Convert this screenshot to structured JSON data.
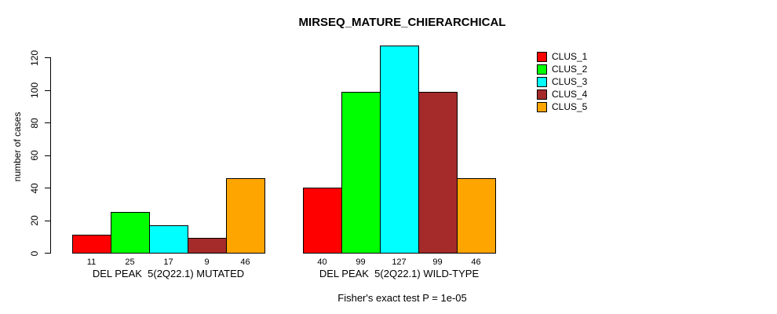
{
  "chart_data": {
    "type": "bar",
    "title": "MIRSEQ_MATURE_CHIERARCHICAL",
    "ylabel": "number of cases",
    "xlabel": "",
    "ylim": [
      0,
      127
    ],
    "yticks": [
      0,
      20,
      40,
      60,
      80,
      100,
      120
    ],
    "grid": false,
    "legend_position": "top-right",
    "bar_value_labels": true,
    "categories": [
      "DEL PEAK  5(2Q22.1) MUTATED",
      "DEL PEAK  5(2Q22.1) WILD-TYPE"
    ],
    "series": [
      {
        "name": "CLUS_1",
        "color": "#FF0000",
        "values": [
          11,
          40
        ]
      },
      {
        "name": "CLUS_2",
        "color": "#00FF00",
        "values": [
          25,
          99
        ]
      },
      {
        "name": "CLUS_3",
        "color": "#00FFFF",
        "values": [
          17,
          127
        ]
      },
      {
        "name": "CLUS_4",
        "color": "#A52A2A",
        "values": [
          9,
          99
        ]
      },
      {
        "name": "CLUS_5",
        "color": "#FFA500",
        "values": [
          46,
          46
        ]
      }
    ],
    "annotation": "Fisher's exact test P = 1e-05"
  }
}
